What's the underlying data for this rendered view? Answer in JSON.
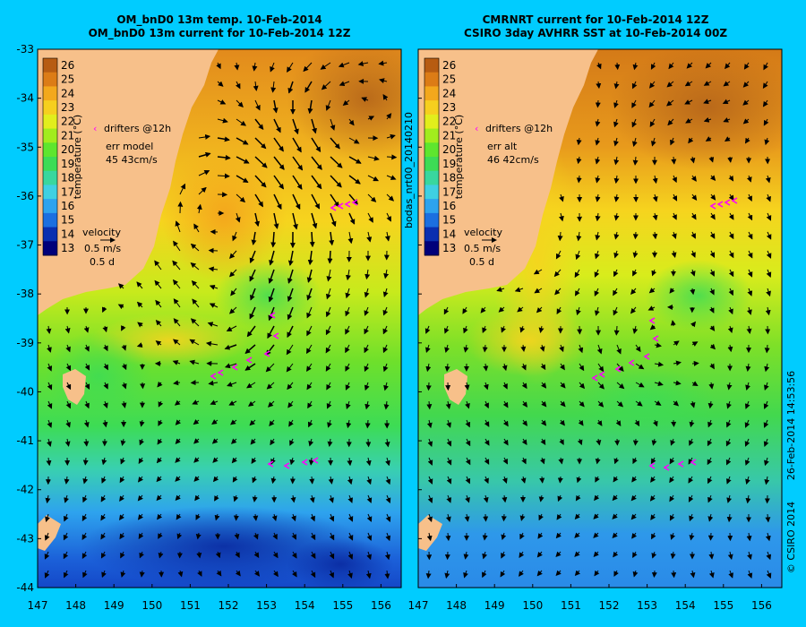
{
  "left_panel": {
    "title_line1": "OM_bnD0 13m temp. 10-Feb-2014",
    "title_line2": "OM_bnD0 13m current for 10-Feb-2014 12Z",
    "drifters_label": "drifters @12h",
    "err_label": "err model",
    "err_value": "45 43cm/s",
    "velocity_label": "velocity",
    "velocity_scale": "0.5 m/s",
    "velocity_time": "0.5 d"
  },
  "right_panel": {
    "title_line1": "CMRNRT current for 10-Feb-2014 12Z",
    "title_line2": "CSIRO 3day AVHRR SST at 10-Feb-2014 00Z",
    "drifters_label": "drifters @12h",
    "err_label": "err alt",
    "err_value": "46 42cm/s",
    "velocity_label": "velocity",
    "velocity_scale": "0.5 m/s",
    "velocity_time": "0.5 d"
  },
  "colorbar": {
    "label": "temperature (°C)",
    "ticks": [
      "13",
      "14",
      "15",
      "16",
      "17",
      "18",
      "19",
      "20",
      "21",
      "22",
      "23",
      "24",
      "25",
      "26"
    ],
    "colors": [
      "#00007a",
      "#0a2fb0",
      "#1b6fe0",
      "#2ea3ee",
      "#3fd0e2",
      "#39d79e",
      "#3ddc55",
      "#5ee62e",
      "#a2ec1d",
      "#e2ee1c",
      "#f6cf1e",
      "#f3a81c",
      "#dc7c16",
      "#b75c12"
    ]
  },
  "y_ticks": [
    "-33",
    "-34",
    "-35",
    "-36",
    "-37",
    "-38",
    "-39",
    "-40",
    "-41",
    "-42",
    "-43",
    "-44"
  ],
  "x_ticks": [
    "147",
    "148",
    "149",
    "150",
    "151",
    "152",
    "153",
    "154",
    "155",
    "156"
  ],
  "vertical_text": {
    "file_id": "bodas_nrt00_20140210",
    "copyright": "© CSIRO 2014",
    "timestamp": "26-Feb-2014 14:53:56"
  },
  "colors": {
    "background": "#00ccff",
    "land": "#f7c08a",
    "drifter": "#ff00ff"
  }
}
